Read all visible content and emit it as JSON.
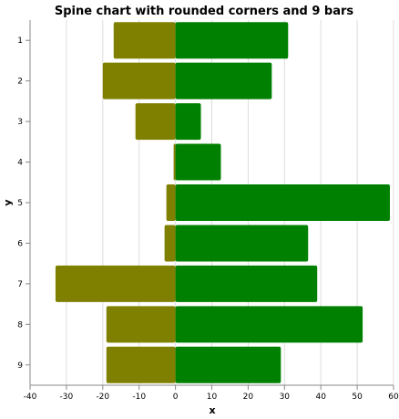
{
  "chart_data": {
    "type": "bar",
    "title": "Spine chart with rounded corners and 9 bars",
    "xlabel": "x",
    "ylabel": "y",
    "xlim": [
      -40,
      60
    ],
    "xticks": [
      -40,
      -30,
      -20,
      -10,
      0,
      10,
      20,
      30,
      40,
      50,
      60
    ],
    "categories": [
      "1",
      "2",
      "3",
      "4",
      "5",
      "6",
      "7",
      "8",
      "9"
    ],
    "grid": true,
    "series": [
      {
        "color": "#808000",
        "values": [
          -17,
          -20,
          -11,
          -0.5,
          -2.5,
          -3,
          -33,
          -19,
          -19
        ]
      },
      {
        "color": "#008000",
        "values": [
          31,
          26.5,
          7,
          12.5,
          59,
          36.5,
          39,
          51.5,
          29
        ]
      }
    ]
  }
}
